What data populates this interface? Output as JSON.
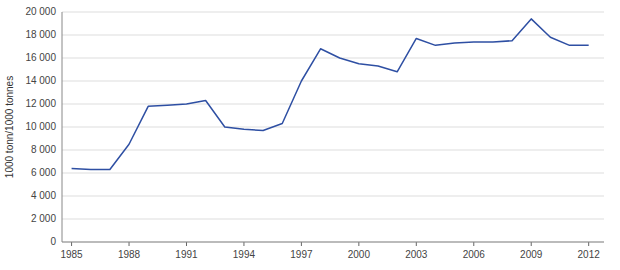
{
  "chart_data": {
    "type": "line",
    "ylabel": "1000 tonn/1000 tonnes",
    "x": [
      1985,
      1986,
      1987,
      1988,
      1989,
      1990,
      1991,
      1992,
      1993,
      1994,
      1995,
      1996,
      1997,
      1998,
      1999,
      2000,
      2001,
      2002,
      2003,
      2004,
      2005,
      2006,
      2007,
      2008,
      2009,
      2010,
      2011,
      2012
    ],
    "values": [
      6400,
      6300,
      6300,
      8500,
      11800,
      11900,
      12000,
      12300,
      10000,
      9800,
      9700,
      10300,
      14000,
      16800,
      16000,
      15500,
      15300,
      14800,
      17700,
      17100,
      17300,
      17400,
      17400,
      17500,
      19400,
      17800,
      17100,
      17100
    ],
    "color": "#2E4FA3",
    "xlim": [
      1984.5,
      2012.8
    ],
    "xticks": [
      1985,
      1988,
      1991,
      1994,
      1997,
      2000,
      2003,
      2006,
      2009,
      2012
    ],
    "ylim": [
      0,
      20000
    ],
    "yticks": [
      0,
      {
        "value": 2000,
        "label": "2 000"
      },
      {
        "value": 4000,
        "label": "4 000"
      },
      {
        "value": 6000,
        "label": "6 000"
      },
      {
        "value": 8000,
        "label": "8 000"
      },
      {
        "value": 10000,
        "label": "10 000"
      },
      {
        "value": 12000,
        "label": "12 000"
      },
      {
        "value": 14000,
        "label": "14 000"
      },
      {
        "value": 16000,
        "label": "16 000"
      },
      {
        "value": 18000,
        "label": "18 000"
      },
      {
        "value": 20000,
        "label": "20 000"
      }
    ],
    "grid": true
  }
}
